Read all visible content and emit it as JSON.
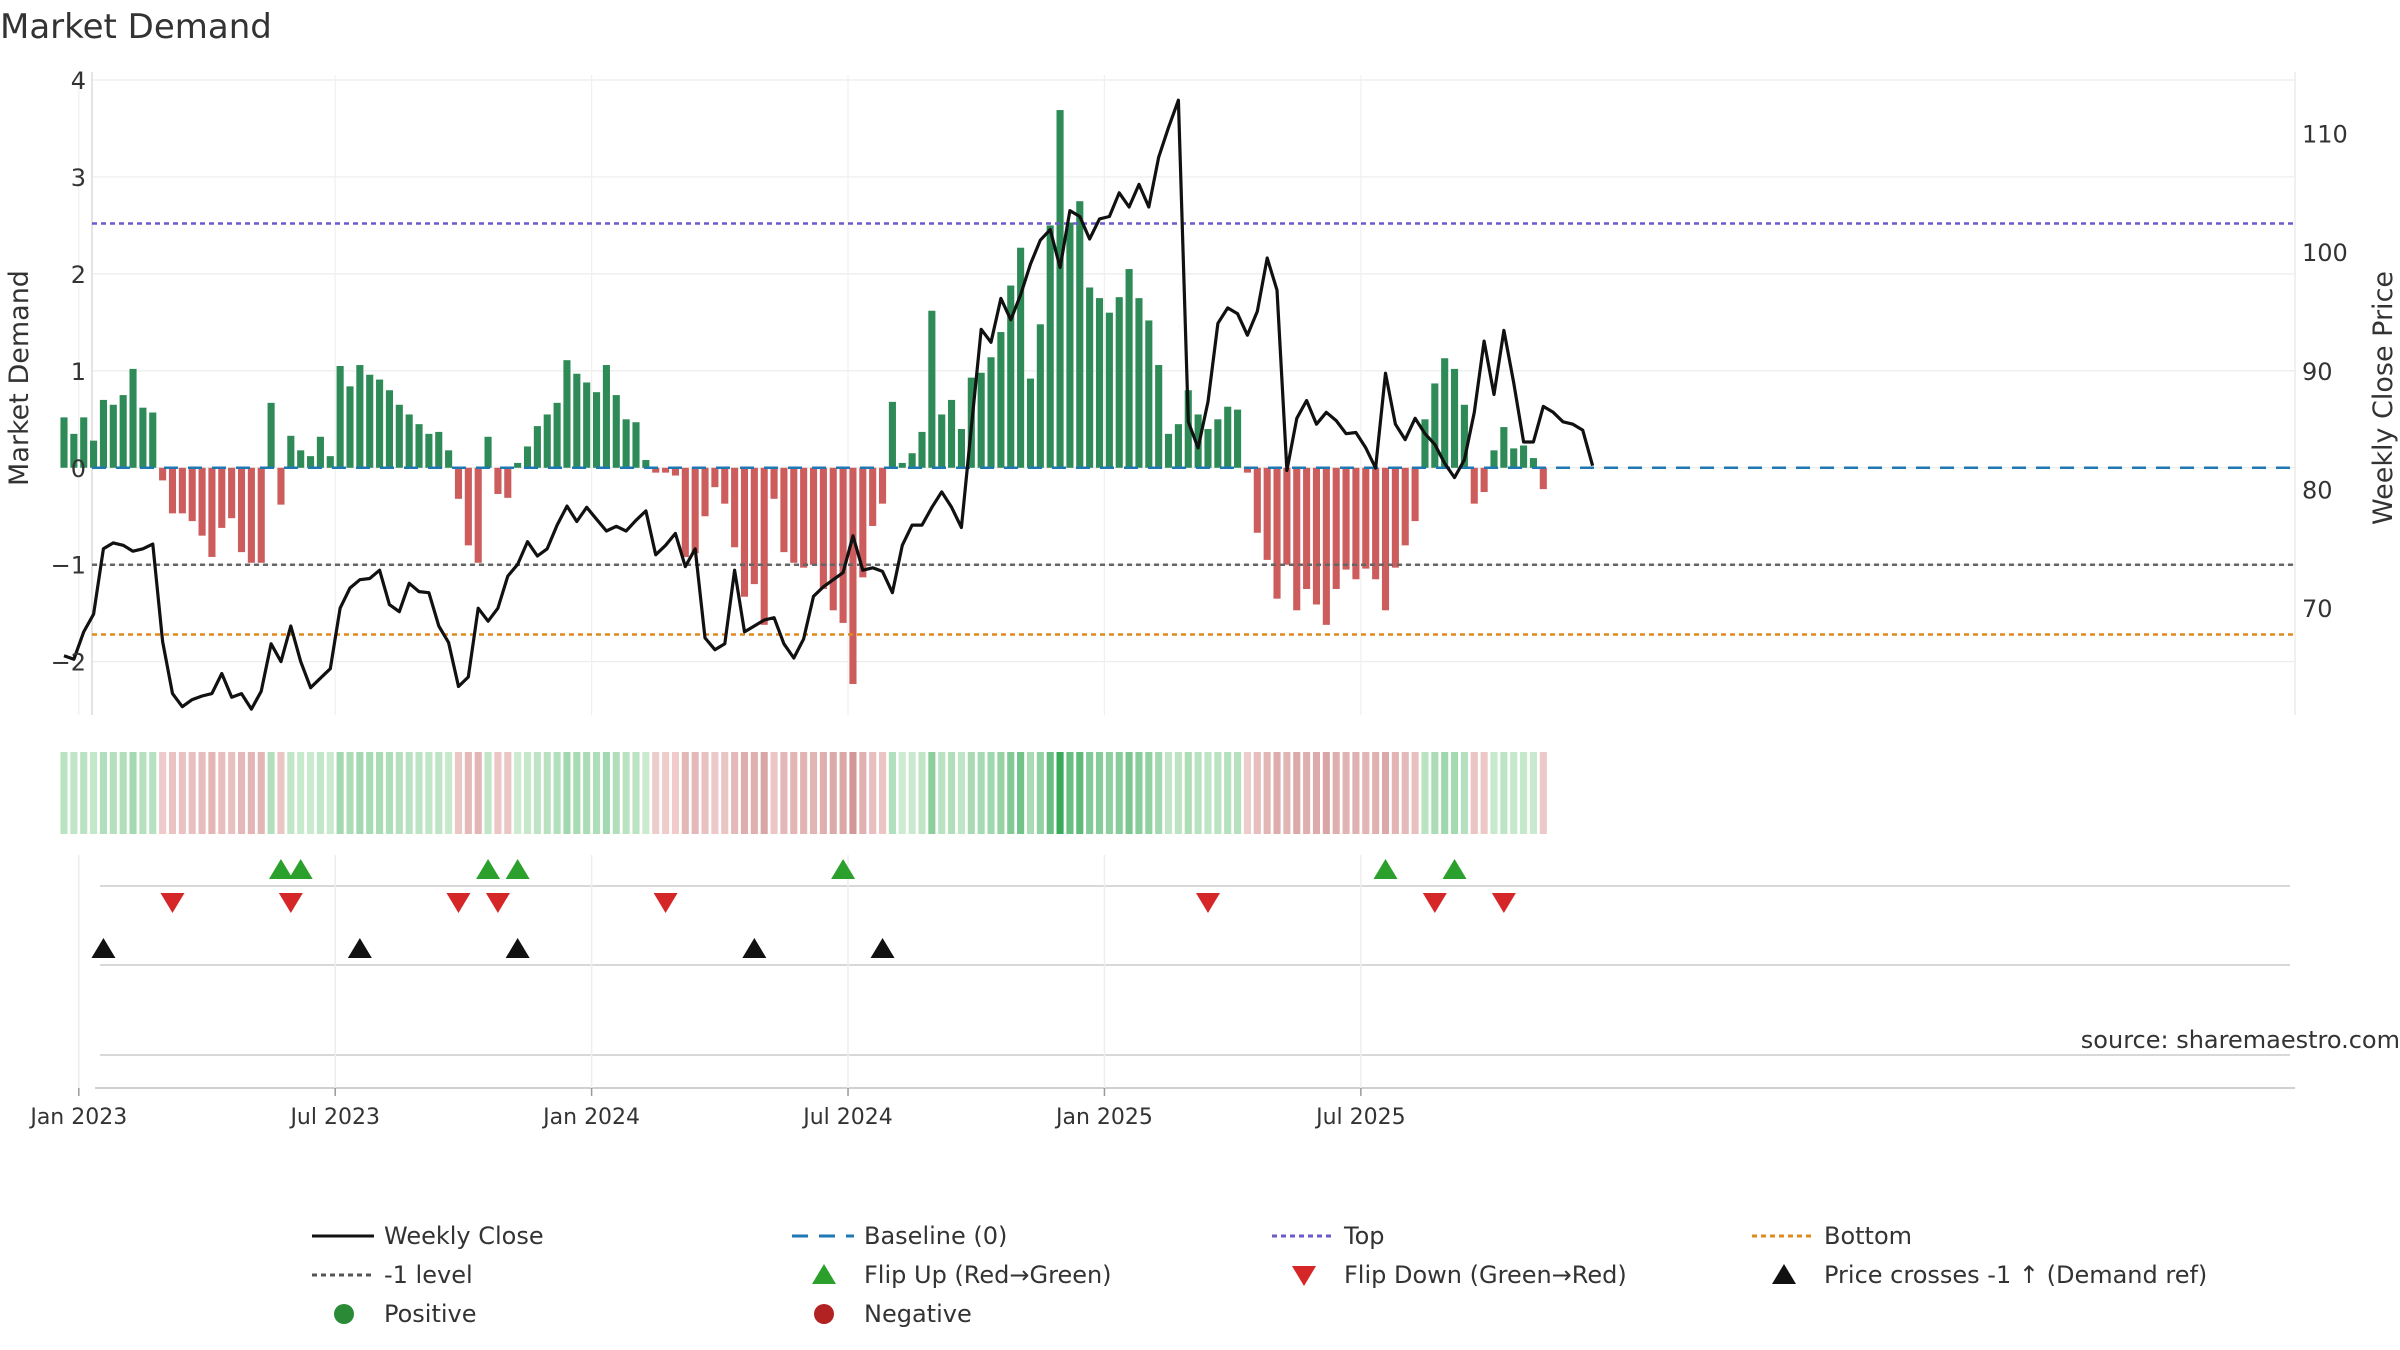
{
  "chart_data": {
    "type": "bar+line",
    "title": "Market Demand",
    "ylabel_left": "Market Demand",
    "ylabel_right": "Weekly Close Price",
    "source": "source: sharemaestro.com",
    "ylim_left": [
      -2.55,
      4.0
    ],
    "ylim_right": [
      61.0,
      114.5
    ],
    "yticks_left": [
      "4",
      "3",
      "2",
      "1",
      "0",
      "−1",
      "−2"
    ],
    "yticks_left_values": [
      4,
      3,
      2,
      1,
      0,
      -1,
      -2
    ],
    "yticks_right": [
      "110",
      "100",
      "90",
      "80",
      "70"
    ],
    "yticks_right_values": [
      110,
      100,
      90,
      80,
      70
    ],
    "xticks": [
      "Jan 2023",
      "Jul 2023",
      "Jan 2024",
      "Jul 2024",
      "Jan 2025",
      "Jul 2025"
    ],
    "xtick_week_index": [
      1.5,
      27.5,
      53.5,
      79.5,
      105.5,
      131.5
    ],
    "top_level": 2.52,
    "bottom_level": -1.72,
    "minus_one_level": -1,
    "demand": [
      0.52,
      0.35,
      0.52,
      0.28,
      0.7,
      0.65,
      0.75,
      1.02,
      0.62,
      0.57,
      -0.13,
      -0.47,
      -0.47,
      -0.55,
      -0.7,
      -0.92,
      -0.62,
      -0.52,
      -0.87,
      -0.98,
      -0.98,
      0.67,
      -0.38,
      0.33,
      0.18,
      0.12,
      0.32,
      0.12,
      1.05,
      0.84,
      1.06,
      0.96,
      0.91,
      0.8,
      0.65,
      0.55,
      0.45,
      0.35,
      0.37,
      0.18,
      -0.32,
      -0.8,
      -0.98,
      0.32,
      -0.27,
      -0.31,
      0.05,
      0.22,
      0.43,
      0.55,
      0.67,
      1.11,
      0.97,
      0.88,
      0.78,
      1.06,
      0.75,
      0.5,
      0.47,
      0.08,
      -0.05,
      -0.05,
      -0.08,
      -0.92,
      -0.88,
      -0.5,
      -0.2,
      -0.37,
      -0.82,
      -1.33,
      -1.2,
      -1.62,
      -0.32,
      -0.87,
      -0.98,
      -1.03,
      -1.0,
      -1.25,
      -1.47,
      -1.6,
      -2.23,
      -1.13,
      -0.6,
      -0.37,
      0.68,
      0.05,
      0.15,
      0.37,
      1.62,
      0.55,
      0.7,
      0.4,
      0.93,
      0.98,
      1.14,
      1.4,
      1.88,
      2.27,
      0.92,
      1.48,
      2.5,
      3.69,
      2.53,
      2.75,
      1.86,
      1.75,
      1.6,
      1.76,
      2.05,
      1.75,
      1.52,
      1.06,
      0.35,
      0.45,
      0.8,
      0.55,
      0.4,
      0.5,
      0.63,
      0.6,
      -0.05,
      -0.67,
      -0.95,
      -1.35,
      -1.0,
      -1.47,
      -1.25,
      -1.41,
      -1.62,
      -1.25,
      -1.05,
      -1.15,
      -1.04,
      -1.15,
      -1.47,
      -1.03,
      -0.8,
      -0.55,
      0.5,
      0.87,
      1.13,
      1.02,
      0.65,
      -0.37,
      -0.25,
      0.18,
      0.42,
      0.2,
      0.23,
      0.1,
      -0.22
    ],
    "weekly_close": [
      66.0,
      65.7,
      68.0,
      69.5,
      75.0,
      75.5,
      75.3,
      74.8,
      75.0,
      75.4,
      67.2,
      62.8,
      61.7,
      62.3,
      62.6,
      62.8,
      64.5,
      62.5,
      62.8,
      61.5,
      63.0,
      67.0,
      65.5,
      68.5,
      65.5,
      63.3,
      64.1,
      64.9,
      70.0,
      71.7,
      72.4,
      72.5,
      73.2,
      70.3,
      69.7,
      72.1,
      71.4,
      71.3,
      68.5,
      67.1,
      63.4,
      64.2,
      70.0,
      68.9,
      70.0,
      72.7,
      73.7,
      75.6,
      74.4,
      75.0,
      77.0,
      78.6,
      77.3,
      78.5,
      77.5,
      76.5,
      76.9,
      76.5,
      77.4,
      78.2,
      74.5,
      75.3,
      76.3,
      73.5,
      75.0,
      67.5,
      66.5,
      67.0,
      73.2,
      68.0,
      68.5,
      69.0,
      69.2,
      67.0,
      65.8,
      67.4,
      71.0,
      71.8,
      72.4,
      73.0,
      76.1,
      73.2,
      73.4,
      73.1,
      71.3,
      75.3,
      77.0,
      77.0,
      78.5,
      79.8,
      78.5,
      76.8,
      85.2,
      93.5,
      92.4,
      96.1,
      94.3,
      96.4,
      99.0,
      101.0,
      101.9,
      98.7,
      103.5,
      103.0,
      101.1,
      102.8,
      103.0,
      105.0,
      103.8,
      105.7,
      103.8,
      108.0,
      110.5,
      112.8,
      85.7,
      83.5,
      87.4,
      94.0,
      95.3,
      94.8,
      93.0,
      95.0,
      99.5,
      96.8,
      81.6,
      86.0,
      87.5,
      85.5,
      86.5,
      85.8,
      84.7,
      84.8,
      83.5,
      81.8,
      89.8,
      85.5,
      84.2,
      86.0,
      84.7,
      83.8,
      82.2,
      81.0,
      82.5,
      86.5,
      92.5,
      88.0,
      93.4,
      89.0,
      84.0,
      84.0,
      87.0,
      86.5,
      85.7,
      85.5,
      85.0,
      82.0
    ],
    "first_x": 64,
    "week_spacing": 9.862,
    "flip_up_weeks": [
      22,
      24,
      43,
      46,
      79,
      134,
      141
    ],
    "flip_down_weeks": [
      11,
      23,
      40,
      44,
      61,
      116,
      139,
      146
    ],
    "price_cross_weeks": [
      4,
      30,
      46,
      70,
      83
    ],
    "legend": [
      {
        "label": "Weekly Close",
        "symbol": "line-solid",
        "color": "#111111"
      },
      {
        "label": "Baseline (0)",
        "symbol": "line-dash",
        "color": "#1f77b4"
      },
      {
        "label": "Top",
        "symbol": "line-dot",
        "color": "#6a5acd"
      },
      {
        "label": "Bottom",
        "symbol": "line-dot",
        "color": "#e08a1e"
      },
      {
        "label": "-1 level",
        "symbol": "line-dot",
        "color": "#555555"
      },
      {
        "label": "Flip Up (Red→Green)",
        "symbol": "triangle-up",
        "color": "#2ca02c"
      },
      {
        "label": "Flip Down (Green→Red)",
        "symbol": "triangle-down",
        "color": "#d62728"
      },
      {
        "label": "Price crosses -1 ↑ (Demand ref)",
        "symbol": "triangle-up",
        "color": "#111111"
      },
      {
        "label": "Positive",
        "symbol": "circle",
        "color": "#2a8a35"
      },
      {
        "label": "Negative",
        "symbol": "circle",
        "color": "#b22222"
      }
    ],
    "colors": {
      "positive_bar": "#2e8b57",
      "negative_bar": "#cd5c5c",
      "price_line": "#111111",
      "top_line": "#6a5acd",
      "bottom_line": "#e08a1e",
      "minus_one_line": "#666666",
      "baseline": "#1f77b4"
    }
  }
}
